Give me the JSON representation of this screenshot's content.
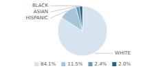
{
  "chart_data": {
    "type": "pie",
    "categories": [
      "WHITE",
      "HISPANIC",
      "ASIAN",
      "BLACK"
    ],
    "values": [
      84.1,
      11.5,
      2.4,
      2.0
    ],
    "value_labels": [
      "84.1%",
      "11.5%",
      "2.4%",
      "2.0%"
    ],
    "colors": [
      "#d6e4f0",
      "#a8c4d8",
      "#6a9bb5",
      "#2c5f7a"
    ],
    "legend": "bottom"
  }
}
